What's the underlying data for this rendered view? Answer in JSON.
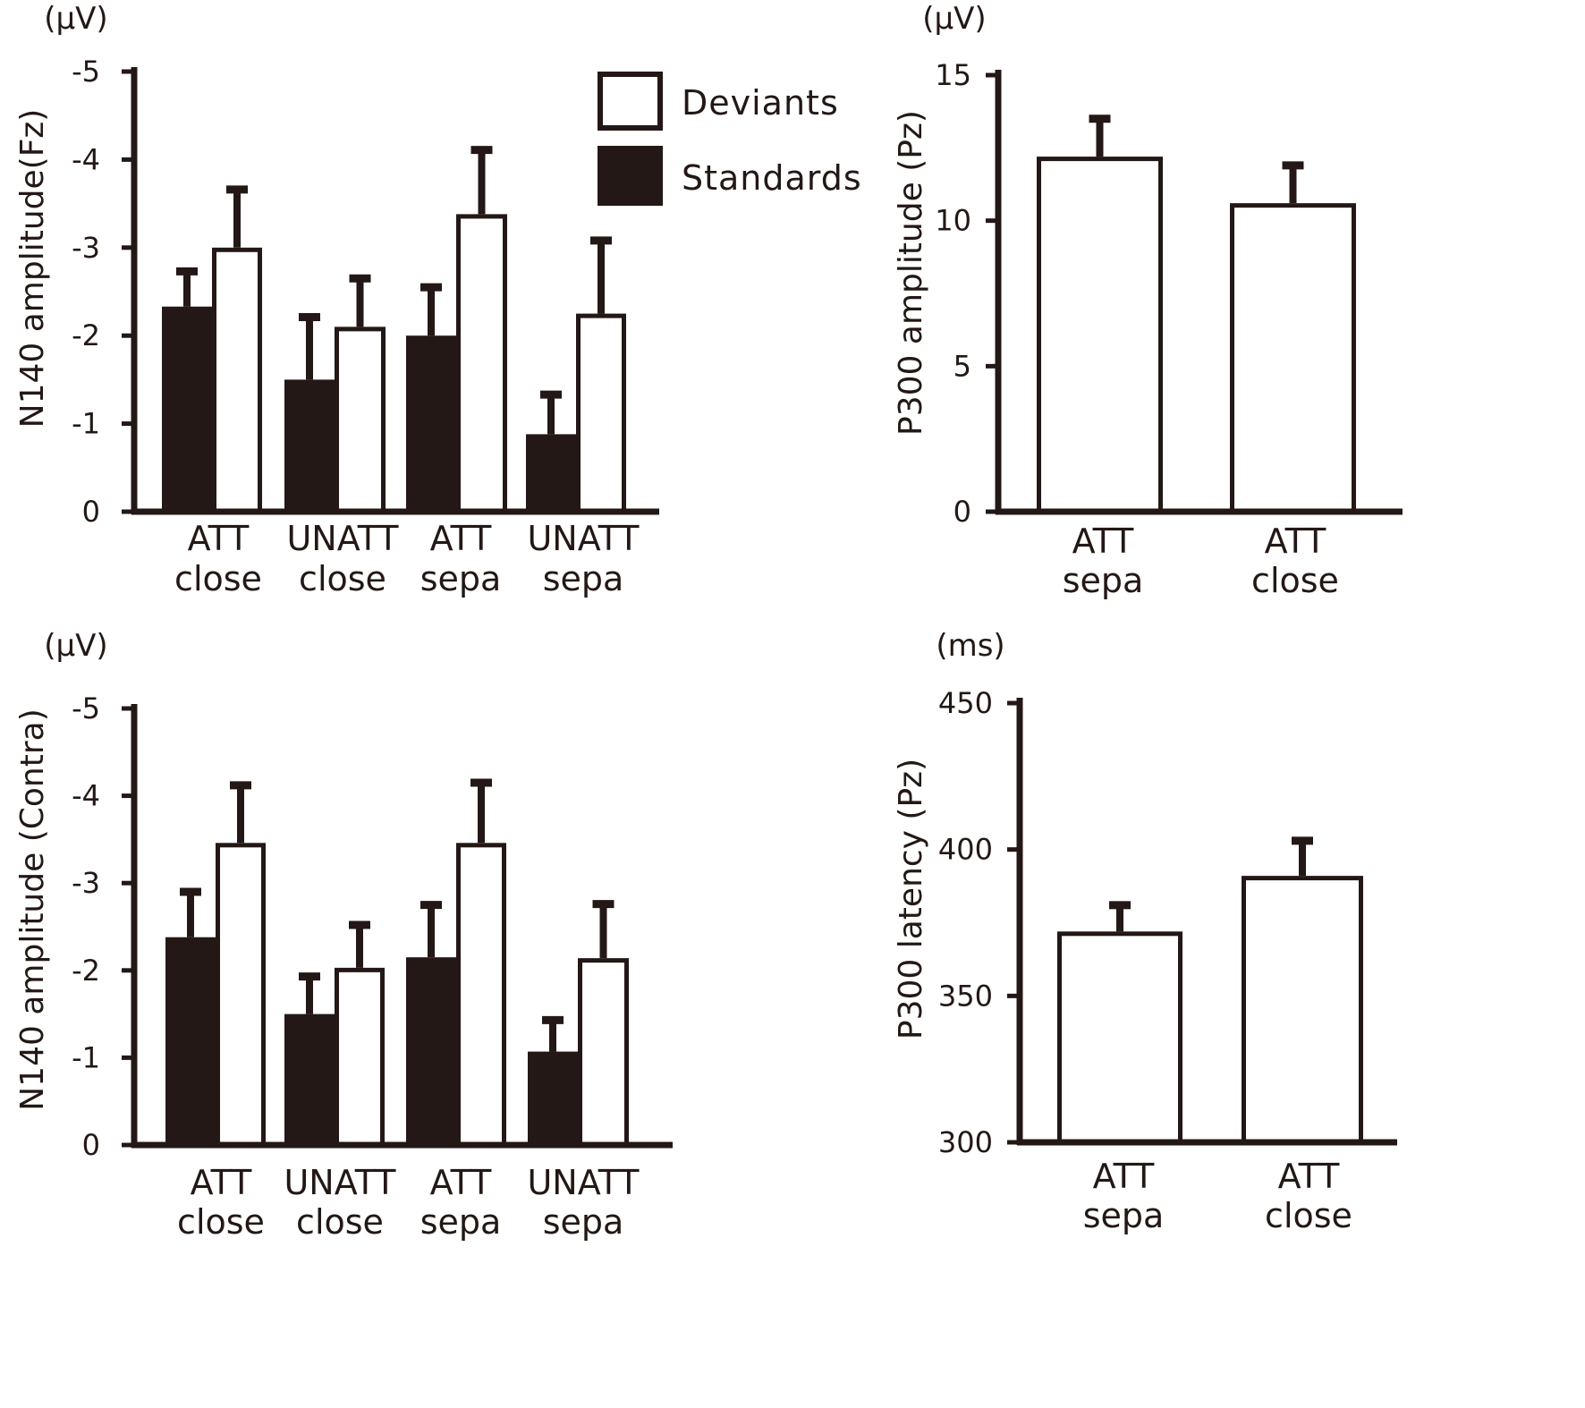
{
  "colors": {
    "ink": "#231815",
    "fill_standards": "#231815",
    "fill_deviants": "#ffffff"
  },
  "legend": {
    "deviants": "Deviants",
    "standards": "Standards"
  },
  "chart_data": [
    {
      "id": "n140-fz",
      "type": "bar",
      "title": "",
      "unit": "(μV)",
      "ylabel": "N140 amplitude(Fz)",
      "ylim": [
        0,
        -5
      ],
      "yticks": [
        0,
        -1,
        -2,
        -3,
        -4,
        -5
      ],
      "categories": [
        [
          "ATT",
          "close"
        ],
        [
          "UNATT",
          "close"
        ],
        [
          "ATT",
          "sepa"
        ],
        [
          "UNATT",
          "sepa"
        ]
      ],
      "series": [
        {
          "name": "Standards",
          "values": [
            -2.33,
            -1.5,
            -2.0,
            -0.88
          ],
          "errors": [
            0.4,
            0.71,
            0.55,
            0.45
          ]
        },
        {
          "name": "Deviants",
          "values": [
            -3.0,
            -2.1,
            -3.38,
            -2.25
          ],
          "errors": [
            0.66,
            0.55,
            0.73,
            0.83
          ]
        }
      ]
    },
    {
      "id": "p300-amp",
      "type": "bar",
      "title": "",
      "unit": "(μV)",
      "ylabel": "P300 amplitude (Pz)",
      "ylim": [
        0,
        15
      ],
      "yticks": [
        0,
        5,
        10,
        15
      ],
      "categories": [
        [
          "ATT",
          "sepa"
        ],
        [
          "ATT",
          "close"
        ]
      ],
      "series": [
        {
          "name": "Deviants",
          "values": [
            12.2,
            10.6
          ],
          "errors": [
            1.3,
            1.3
          ]
        }
      ]
    },
    {
      "id": "n140-contra",
      "type": "bar",
      "title": "",
      "unit": "(μV)",
      "ylabel": "N140 amplitude (Contra)",
      "ylim": [
        0,
        -5
      ],
      "yticks": [
        0,
        -1,
        -2,
        -3,
        -4,
        -5
      ],
      "categories": [
        [
          "ATT",
          "close"
        ],
        [
          "UNATT",
          "close"
        ],
        [
          "ATT",
          "sepa"
        ],
        [
          "UNATT",
          "sepa"
        ]
      ],
      "series": [
        {
          "name": "Standards",
          "values": [
            -2.38,
            -1.5,
            -2.15,
            -1.07
          ],
          "errors": [
            0.52,
            0.43,
            0.6,
            0.36
          ]
        },
        {
          "name": "Deviants",
          "values": [
            -3.46,
            -2.03,
            -3.46,
            -2.14
          ],
          "errors": [
            0.66,
            0.49,
            0.69,
            0.62
          ]
        }
      ]
    },
    {
      "id": "p300-lat",
      "type": "bar",
      "title": "",
      "unit": "(ms)",
      "ylabel": "P300 latency (Pz)",
      "ylim": [
        300,
        450
      ],
      "yticks": [
        300,
        350,
        400,
        450
      ],
      "categories": [
        [
          "ATT",
          "sepa"
        ],
        [
          "ATT",
          "close"
        ]
      ],
      "series": [
        {
          "name": "Deviants",
          "values": [
            372,
            391
          ],
          "errors": [
            9,
            12
          ]
        }
      ]
    }
  ]
}
